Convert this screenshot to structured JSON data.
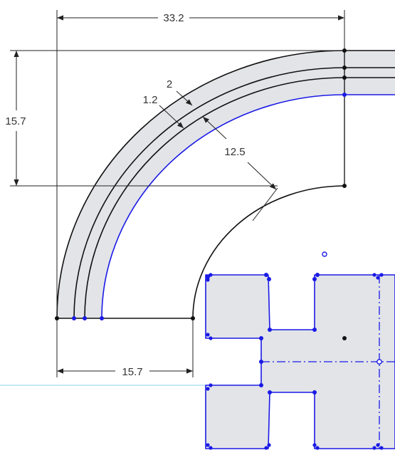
{
  "dimensions": {
    "top_width": "33.2",
    "left_height": "15.7",
    "bottom_width": "15.7",
    "wall_outer": "2",
    "wall_inner": "1.2",
    "inner_radius": "12.5"
  },
  "colors": {
    "background": "#ffffff",
    "fill": "#e2e4e8",
    "geometry_line": "#111111",
    "dimension_line": "#222222",
    "selected": "#1a1ae6",
    "guide_line": "#8fd3f0"
  }
}
